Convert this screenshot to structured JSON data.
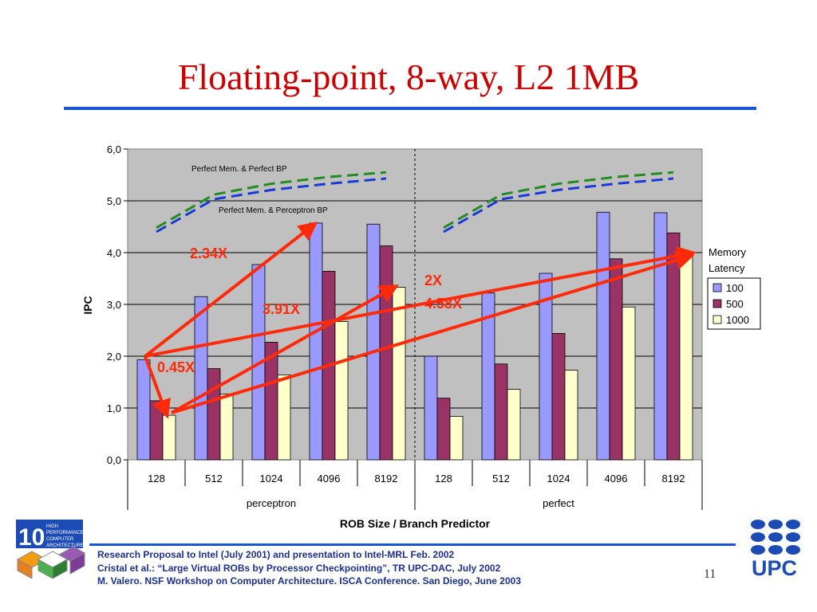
{
  "slide": {
    "title": "Floating-point, 8-way, L2 1MB",
    "page_number": "11",
    "footer_lines": [
      "Research Proposal  to Intel (July 2001) and  presentation to Intel-MRL Feb. 2002",
      "Cristal et al.: “Large Virtual ROBs by Processor Checkpointing”, TR UPC-DAC, July 2002",
      "M. Valero. NSF Workshop on Computer Architecture. ISCA Conference. San Diego, June 2003"
    ],
    "logo_left_lines": [
      "HIGH",
      "PERFORMANCE",
      "COMPUTER",
      "ARCHITECTURE"
    ],
    "logo_left_mark": "10",
    "logo_right_text": "UPC"
  },
  "chart_data": {
    "type": "bar",
    "ylabel": "IPC",
    "xlabel": "ROB Size / Branch Predictor",
    "ylim": [
      0,
      6
    ],
    "y_ticks": [
      "0,0",
      "1,0",
      "2,0",
      "3,0",
      "4,0",
      "5,0",
      "6,0"
    ],
    "groups": [
      "perceptron",
      "perfect"
    ],
    "categories": [
      "128",
      "512",
      "1024",
      "4096",
      "8192"
    ],
    "legend_title": "Memory Latency",
    "legend_position": "right",
    "series": [
      {
        "name": "100",
        "color": "#9999ff",
        "values": [
          [
            1.93,
            3.15,
            3.77,
            4.57,
            4.55
          ],
          [
            2.0,
            3.22,
            3.6,
            4.78,
            4.77
          ]
        ]
      },
      {
        "name": "500",
        "color": "#993366",
        "values": [
          [
            1.14,
            1.76,
            2.27,
            3.64,
            4.13
          ],
          [
            1.19,
            1.85,
            2.44,
            3.88,
            4.38
          ]
        ]
      },
      {
        "name": "1000",
        "color": "#ffffcc",
        "values": [
          [
            0.86,
            1.27,
            1.64,
            2.67,
            3.33
          ],
          [
            0.84,
            1.36,
            1.73,
            2.95,
            3.93
          ]
        ]
      }
    ],
    "lines": [
      {
        "label": "Perfect Mem. & Perfect BP",
        "color": "#228b22",
        "values": [
          [
            4.48,
            5.12,
            5.33,
            5.46,
            5.55
          ],
          [
            4.48,
            5.12,
            5.33,
            5.46,
            5.55
          ]
        ]
      },
      {
        "label": "Perfect Mem. & Perceptron BP",
        "color": "#1a3ad8",
        "values": [
          [
            4.4,
            5.03,
            5.21,
            5.33,
            5.43
          ],
          [
            4.4,
            5.03,
            5.21,
            5.33,
            5.43
          ]
        ]
      }
    ],
    "annotations": [
      "2.34X",
      "3.91X",
      "0.45X",
      "2X",
      "4.58X"
    ],
    "grid": true,
    "plot_background": "#c0c0c0"
  }
}
